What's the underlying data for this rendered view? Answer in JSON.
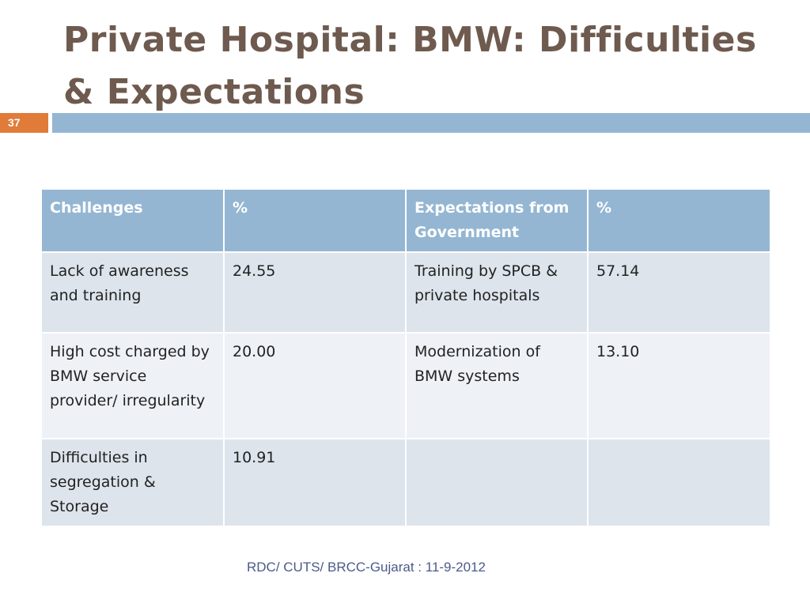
{
  "slide": {
    "title": "Private Hospital: BMW: Difficulties & Expectations",
    "number": "37"
  },
  "table": {
    "headers": [
      "Challenges",
      "%",
      "Expectations from Government",
      "%"
    ],
    "rows": [
      [
        "Lack of awareness and training",
        "24.55",
        "Training by SPCB & private hospitals",
        "57.14"
      ],
      [
        "High cost charged by BMW service provider/ irregularity",
        "20.00",
        "Modernization of BMW systems",
        "13.10"
      ],
      [
        "Difficulties in segregation & Storage",
        "10.91",
        "",
        ""
      ]
    ]
  },
  "footer": "RDC/ CUTS/ BRCC-Gujarat : 11-9-2012",
  "colors": {
    "title": "#6e5a4e",
    "accent_bar": "#94b6d2",
    "slide_number_bg": "#e07b39",
    "table_header": "#94b6d2",
    "row_dark": "#dde4ec",
    "row_light": "#eef2f7"
  }
}
